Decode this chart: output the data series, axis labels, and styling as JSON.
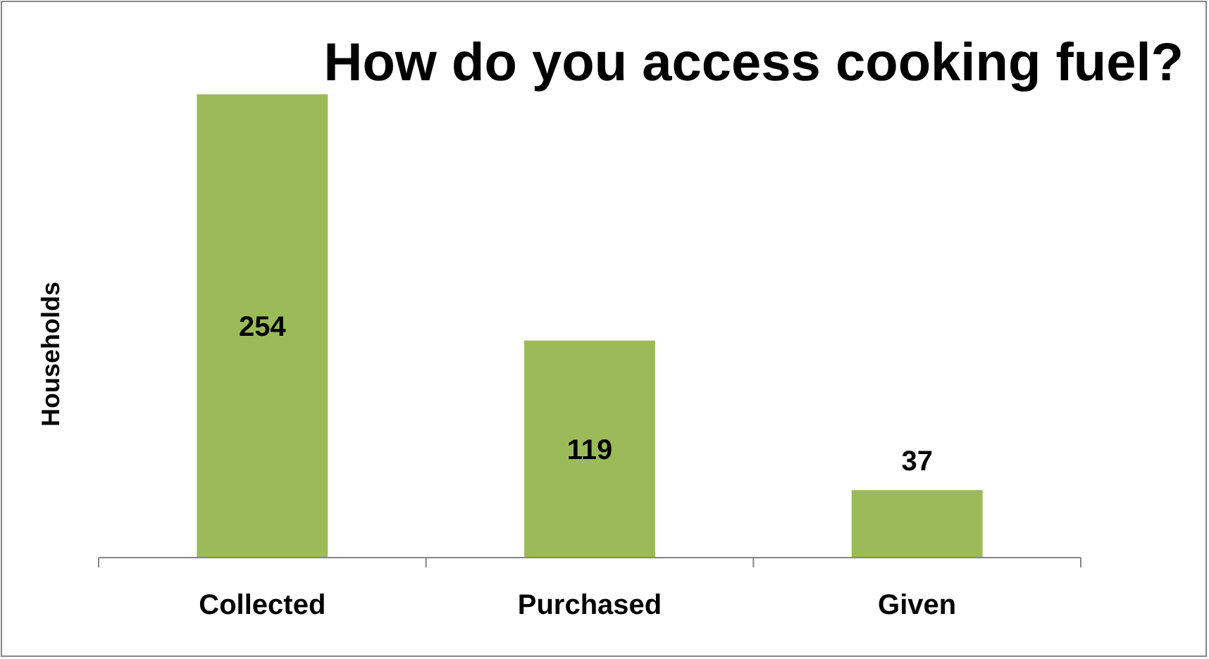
{
  "chart_data": {
    "type": "bar",
    "title": "How do you access cooking fuel?",
    "ylabel": "Households",
    "categories": [
      "Collected",
      "Purchased",
      "Given"
    ],
    "values": [
      254,
      119,
      37
    ],
    "color": "#9bbb59",
    "data_labels": true
  }
}
